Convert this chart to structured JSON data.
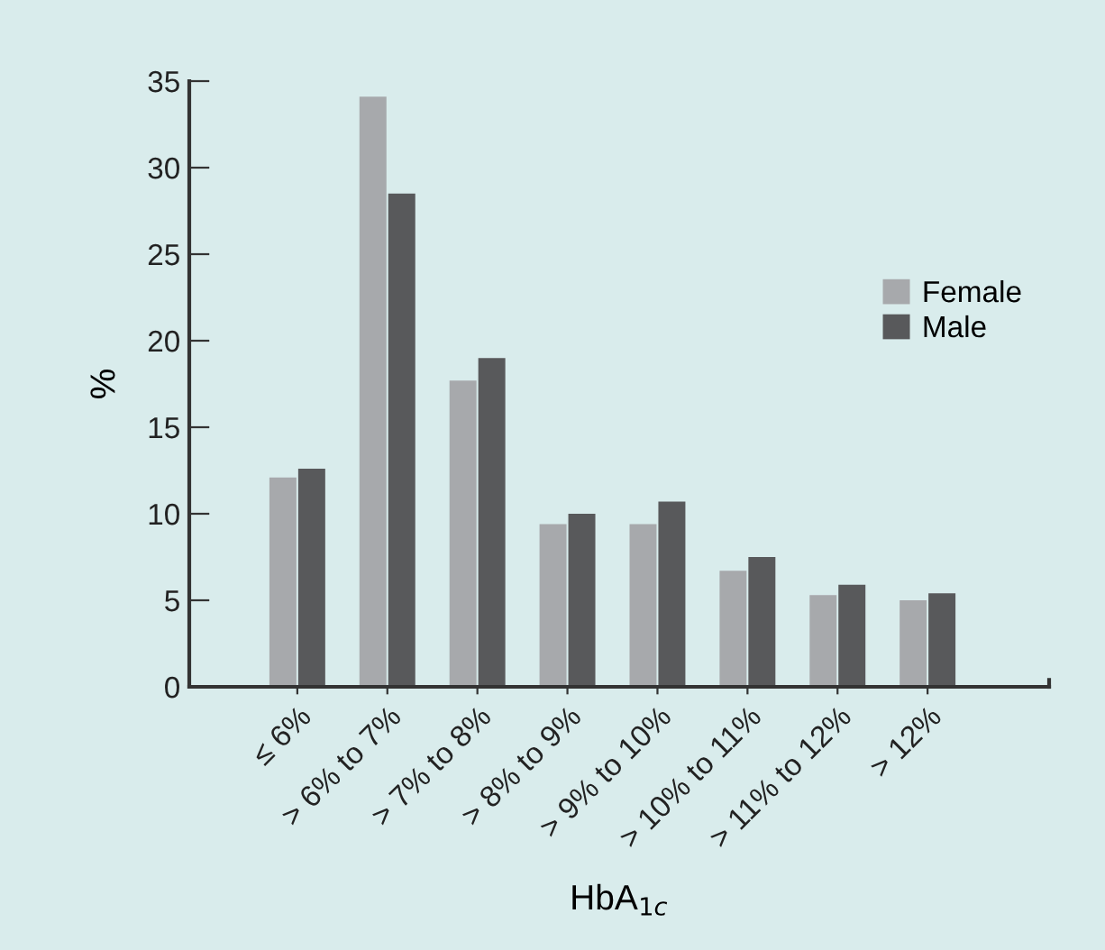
{
  "chart_data": {
    "type": "bar",
    "xlabel": "HbA$_{1c}$",
    "ylabel": "%",
    "categories": [
      "≤ 6%",
      "> 6% to 7%",
      "> 7% to 8%",
      "> 8% to 9%",
      "> 9% to 10%",
      "> 10% to 11%",
      "> 11% to 12%",
      "> 12%"
    ],
    "series": [
      {
        "name": "Female",
        "color": "#a7a9ac",
        "values": [
          12.1,
          34.1,
          17.7,
          9.4,
          9.4,
          6.7,
          5.3,
          5.0
        ]
      },
      {
        "name": "Male",
        "color": "#58595b",
        "values": [
          12.6,
          28.5,
          19.0,
          10.0,
          10.7,
          7.5,
          5.9,
          5.4
        ]
      }
    ],
    "ylim": [
      0,
      35
    ],
    "yticks": [
      0,
      5,
      10,
      15,
      20,
      25,
      30,
      35
    ],
    "grid": false,
    "legend": "right"
  }
}
